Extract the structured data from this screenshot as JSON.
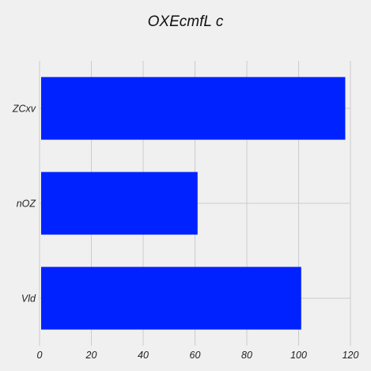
{
  "chart_data": {
    "type": "bar",
    "orientation": "horizontal",
    "title": "OXEcmfL  c",
    "xlabel": "",
    "ylabel": "",
    "categories": [
      "ZCxv",
      "nOZ",
      "Vld"
    ],
    "values": [
      118,
      61,
      101
    ],
    "xlim": [
      0,
      120
    ],
    "xticks": [
      0,
      20,
      40,
      60,
      80,
      100,
      120
    ],
    "grid": true,
    "bar_color": "#0022ff",
    "grid_color": "#cbcbcb",
    "background": "#f0f0f0"
  }
}
